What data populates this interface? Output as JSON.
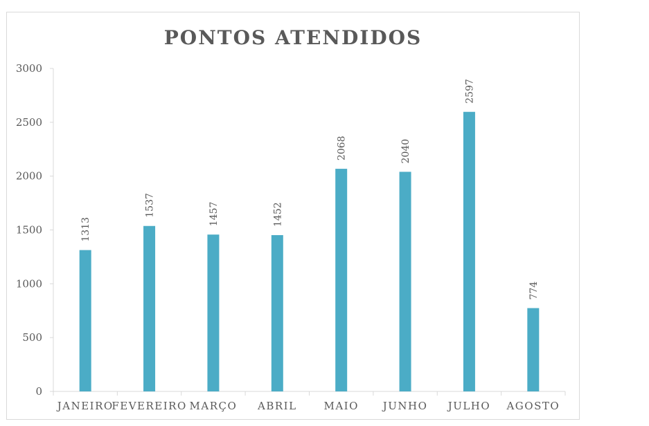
{
  "chart_data": {
    "type": "bar",
    "title": "PONTOS ATENDIDOS",
    "categories": [
      "JANEIRO",
      "FEVEREIRO",
      "MARÇO",
      "ABRIL",
      "MAIO",
      "JUNHO",
      "JULHO",
      "AGOSTO"
    ],
    "values": [
      1313,
      1537,
      1457,
      1452,
      2068,
      2040,
      2597,
      774
    ],
    "ylim": [
      0,
      3000
    ],
    "yticks": [
      "0",
      "500",
      "1000",
      "1500",
      "2000",
      "2500",
      "3000"
    ],
    "data_labels": [
      "1313",
      "1537",
      "1457",
      "1452",
      "2068",
      "2040",
      "2597",
      "774"
    ],
    "bar_color": "#4bacc6",
    "grid": false,
    "legend": "none"
  }
}
